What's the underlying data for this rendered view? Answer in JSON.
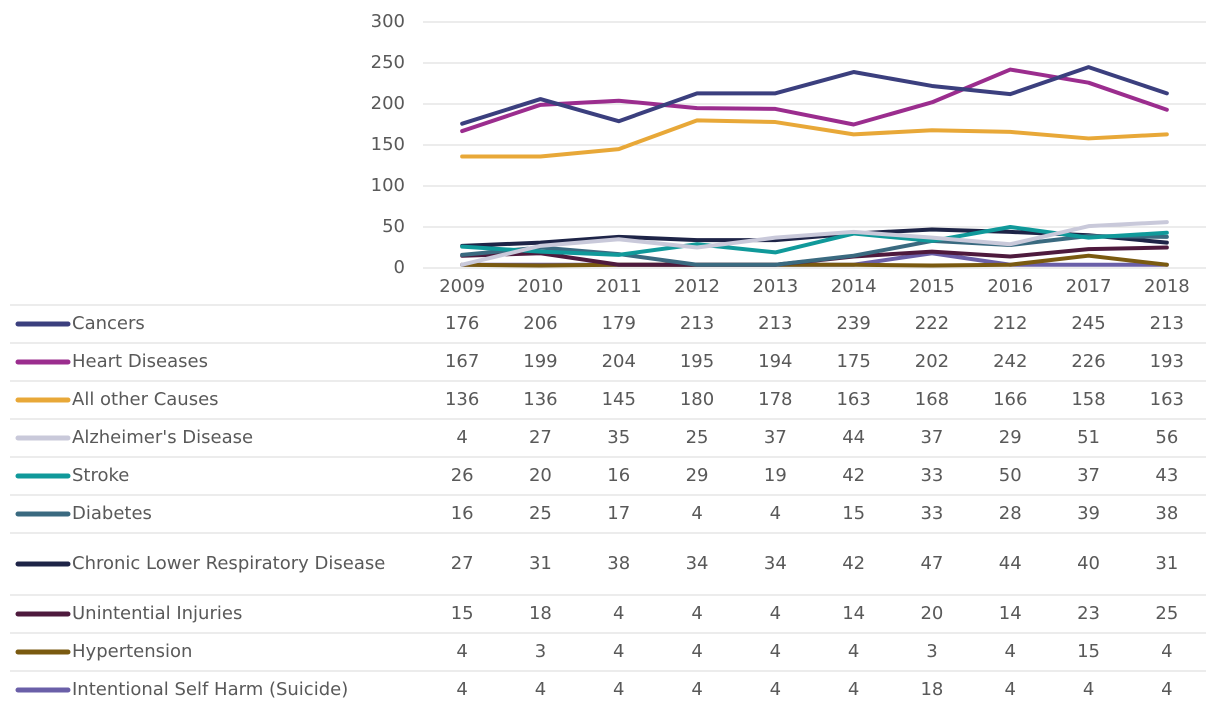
{
  "chart_data": {
    "type": "line",
    "categories": [
      "2009",
      "2010",
      "2011",
      "2012",
      "2013",
      "2014",
      "2015",
      "2016",
      "2017",
      "2018"
    ],
    "ylim": [
      0,
      300
    ],
    "yticks": [
      0,
      50,
      100,
      150,
      200,
      250,
      300
    ],
    "grid": true,
    "series": [
      {
        "name": "Cancers",
        "color": "#3b3f7e",
        "values": [
          176,
          206,
          179,
          213,
          213,
          239,
          222,
          212,
          245,
          213
        ]
      },
      {
        "name": "Heart Diseases",
        "color": "#9b2d8e",
        "values": [
          167,
          199,
          204,
          195,
          194,
          175,
          202,
          242,
          226,
          193
        ]
      },
      {
        "name": "All other Causes",
        "color": "#e8a838",
        "values": [
          136,
          136,
          145,
          180,
          178,
          163,
          168,
          166,
          158,
          163
        ]
      },
      {
        "name": "Alzheimer's Disease",
        "color": "#c9c9da",
        "values": [
          4,
          27,
          35,
          25,
          37,
          44,
          37,
          29,
          51,
          56
        ]
      },
      {
        "name": "Stroke",
        "color": "#10999a",
        "values": [
          26,
          20,
          16,
          29,
          19,
          42,
          33,
          50,
          37,
          43
        ]
      },
      {
        "name": "Diabetes",
        "color": "#3a6a80",
        "values": [
          16,
          25,
          17,
          4,
          4,
          15,
          33,
          28,
          39,
          38
        ]
      },
      {
        "name": "Chronic Lower Respiratory Disease",
        "color": "#1e2447",
        "values": [
          27,
          31,
          38,
          34,
          34,
          42,
          47,
          44,
          40,
          31
        ]
      },
      {
        "name": "Unintential Injuries",
        "color": "#4e1a3d",
        "values": [
          15,
          18,
          4,
          4,
          4,
          14,
          20,
          14,
          23,
          25
        ]
      },
      {
        "name": "Hypertension",
        "color": "#7a5a10",
        "values": [
          4,
          3,
          4,
          4,
          4,
          4,
          3,
          4,
          15,
          4
        ]
      },
      {
        "name": "Intentional Self Harm (Suicide)",
        "color": "#6a5fa8",
        "values": [
          4,
          4,
          4,
          4,
          4,
          4,
          18,
          4,
          4,
          4
        ]
      }
    ]
  }
}
